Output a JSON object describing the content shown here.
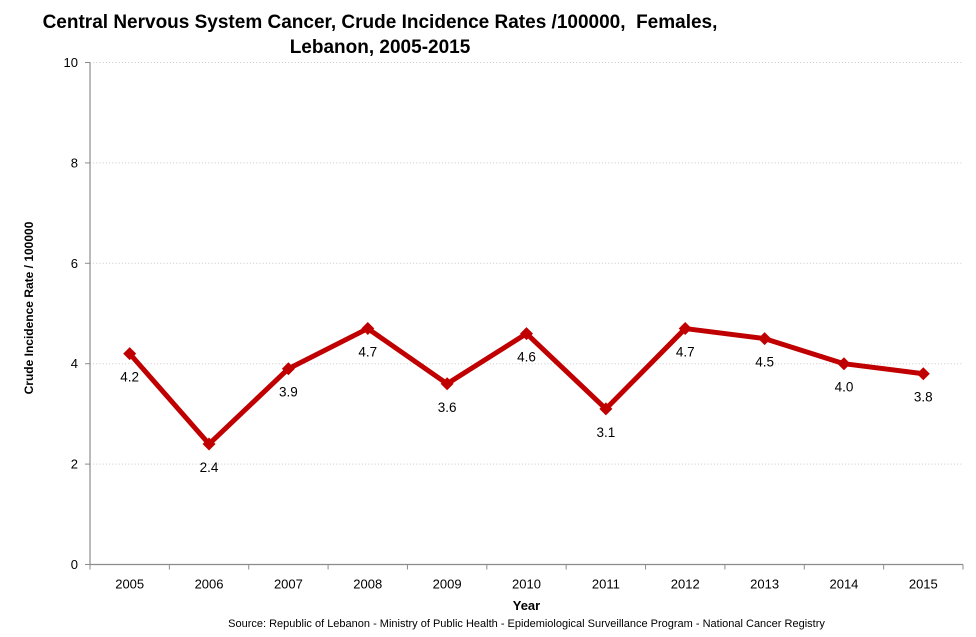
{
  "chart_data": {
    "type": "line",
    "title": "Central Nervous System Cancer, Crude Incidence Rates /100000, Females, Lebanon, 2005-2015",
    "title_lines": [
      "Central Nervous System Cancer, Crude Incidence Rates /100000,  Females,",
      "Lebanon, 2005-2015"
    ],
    "categories": [
      "2005",
      "2006",
      "2007",
      "2008",
      "2009",
      "2010",
      "2011",
      "2012",
      "2013",
      "2014",
      "2015"
    ],
    "values": [
      4.2,
      2.4,
      3.9,
      4.7,
      3.6,
      4.6,
      3.1,
      4.7,
      4.5,
      4.0,
      3.8
    ],
    "xlabel": "Year",
    "ylabel": "Crude Incidence Rate / 100000",
    "ylim": [
      0,
      10
    ],
    "yticks": [
      0,
      2,
      4,
      6,
      8,
      10
    ],
    "grid": "horizontal-dotted",
    "legend_position": "none",
    "marker": "diamond",
    "colors": {
      "line": "#C00000",
      "axis": "#8C8C8C",
      "gridline": "#C9C9C9",
      "text": "#000000"
    },
    "source": "Source: Republic of Lebanon  - Ministry of Public Health - Epidemiological Surveillance Program - National Cancer Registry"
  }
}
